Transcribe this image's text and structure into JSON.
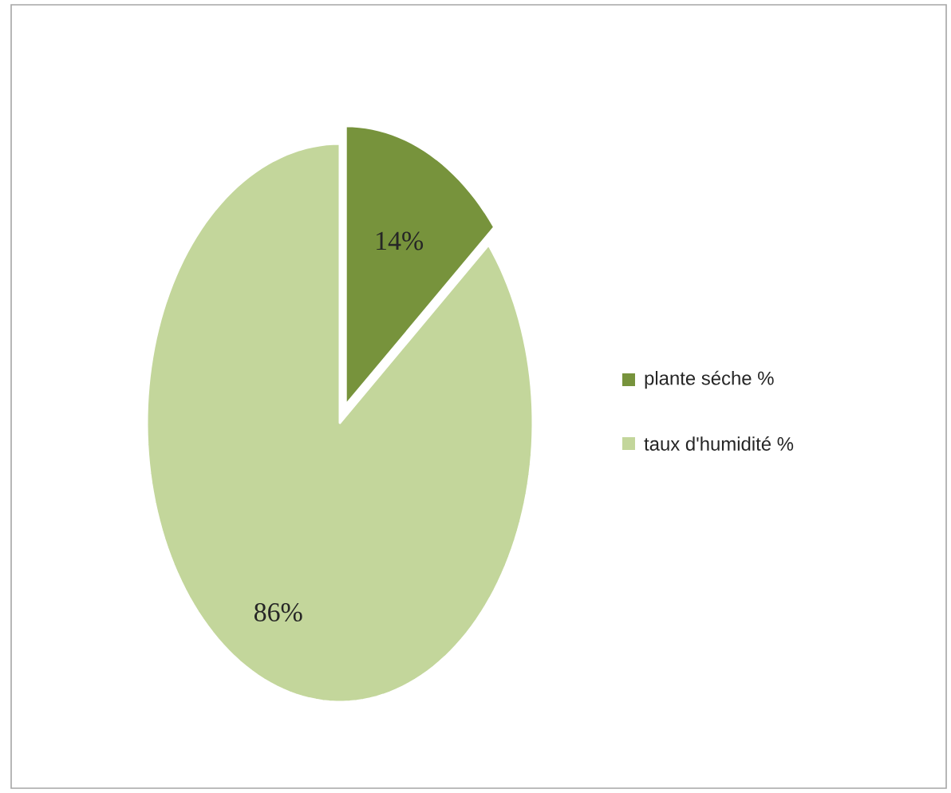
{
  "chart_data": {
    "type": "pie",
    "categories": [
      "plante séche %",
      "taux d'humidité %"
    ],
    "values": [
      14,
      86
    ],
    "value_labels": [
      "14%",
      "86%"
    ],
    "colors": [
      "#77933c",
      "#c3d69b"
    ],
    "legend": "right"
  }
}
